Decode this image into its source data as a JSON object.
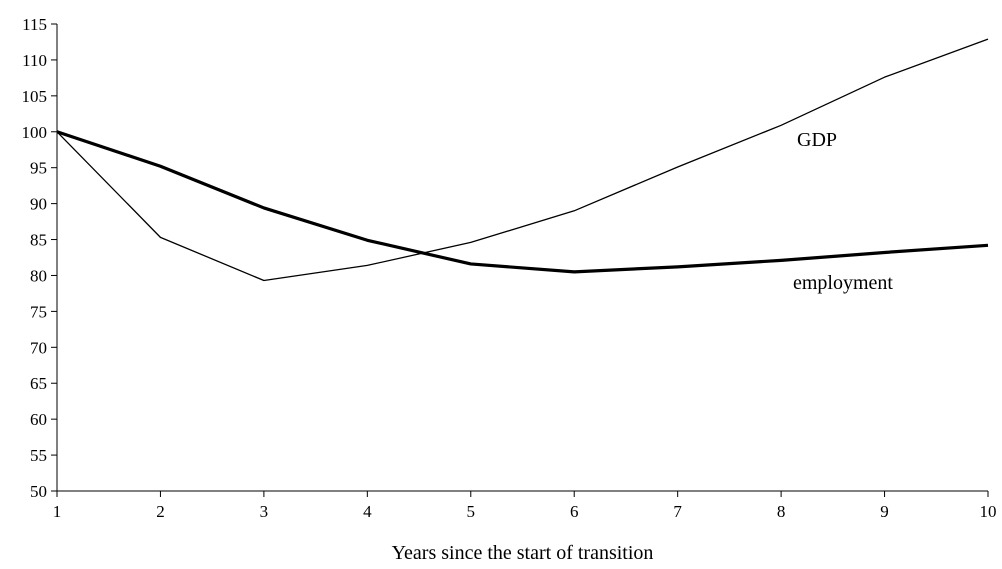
{
  "chart_data": {
    "type": "line",
    "title": "",
    "xlabel": "Years since the start of transition",
    "ylabel": "",
    "x": [
      1,
      2,
      3,
      4,
      5,
      6,
      7,
      8,
      9,
      10
    ],
    "xlim": [
      1,
      10
    ],
    "ylim": [
      50,
      115
    ],
    "y_ticks": [
      50,
      55,
      60,
      65,
      70,
      75,
      80,
      85,
      90,
      95,
      100,
      105,
      110,
      115
    ],
    "x_ticks": [
      1,
      2,
      3,
      4,
      5,
      6,
      7,
      8,
      9,
      10
    ],
    "grid": false,
    "legend": "none",
    "series": [
      {
        "name": "GDP",
        "label_text": "GDP",
        "values": [
          100,
          85.3,
          79.3,
          81.4,
          84.6,
          89.0,
          95.1,
          100.9,
          107.6,
          112.9
        ],
        "color": "#000000",
        "style": "thin"
      },
      {
        "name": "employment",
        "label_text": "employment",
        "values": [
          100,
          95.2,
          89.4,
          84.9,
          81.6,
          80.5,
          81.2,
          82.1,
          83.2,
          84.2
        ],
        "color": "#000000",
        "style": "thick"
      }
    ]
  }
}
